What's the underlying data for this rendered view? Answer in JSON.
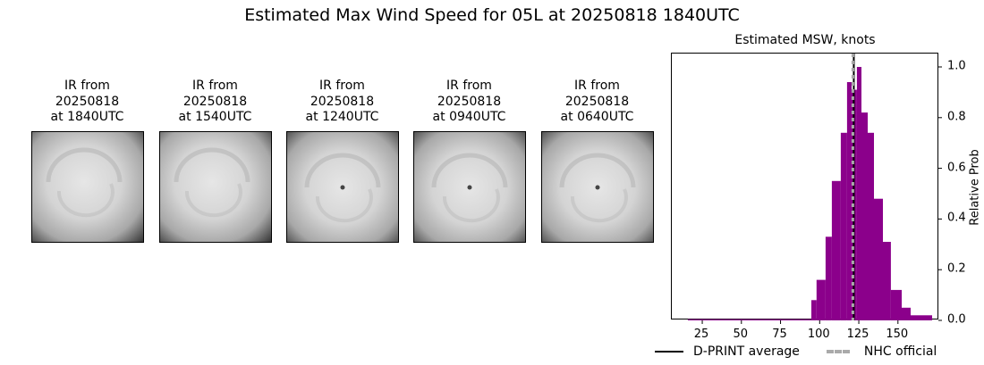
{
  "title": "Estimated Max Wind Speed for 05L at 20250818 1840UTC",
  "ir_panels": [
    {
      "caption": "IR from\n20250818\nat 1840UTC",
      "eye": false
    },
    {
      "caption": "IR from\n20250818\nat 1540UTC",
      "eye": false
    },
    {
      "caption": "IR from\n20250818\nat 1240UTC",
      "eye": true
    },
    {
      "caption": "IR from\n20250818\nat 0940UTC",
      "eye": true
    },
    {
      "caption": "IR from\n20250818\nat 0640UTC",
      "eye": true
    }
  ],
  "legend": {
    "dprint_label": "D-PRINT average",
    "nhc_label": "NHC official"
  },
  "colors": {
    "bar": "#8b008b",
    "dprint_line": "#000000",
    "nhc_line": "#aaaaaa"
  },
  "chart_data": {
    "type": "bar",
    "title": "Estimated MSW, knots",
    "xlabel": "",
    "ylabel": "Relative Prob",
    "xlim": [
      6,
      176.5
    ],
    "ylim": [
      0.0,
      1.05
    ],
    "xticks": [
      25,
      50,
      75,
      100,
      125,
      150
    ],
    "yticks": [
      0.0,
      0.2,
      0.4,
      0.6,
      0.8,
      1.0
    ],
    "ytick_labels": [
      "0.0",
      "0.2",
      "0.4",
      "0.6",
      "0.8",
      "1.0"
    ],
    "y_axis_side": "right",
    "grid": false,
    "bins": [
      {
        "x0": 15.8,
        "x1": 94.7,
        "value": 0.005
      },
      {
        "x0": 94.7,
        "x1": 98.0,
        "value": 0.08
      },
      {
        "x0": 98.0,
        "x1": 103.8,
        "value": 0.16
      },
      {
        "x0": 103.8,
        "x1": 107.8,
        "value": 0.33
      },
      {
        "x0": 107.8,
        "x1": 113.5,
        "value": 0.55
      },
      {
        "x0": 113.5,
        "x1": 117.5,
        "value": 0.74
      },
      {
        "x0": 117.5,
        "x1": 120.4,
        "value": 0.94
      },
      {
        "x0": 120.4,
        "x1": 123.8,
        "value": 0.91
      },
      {
        "x0": 123.8,
        "x1": 126.7,
        "value": 1.0
      },
      {
        "x0": 126.7,
        "x1": 130.7,
        "value": 0.82
      },
      {
        "x0": 130.7,
        "x1": 134.7,
        "value": 0.74
      },
      {
        "x0": 134.7,
        "x1": 140.4,
        "value": 0.48
      },
      {
        "x0": 140.4,
        "x1": 145.5,
        "value": 0.31
      },
      {
        "x0": 145.5,
        "x1": 152.4,
        "value": 0.12
      },
      {
        "x0": 152.4,
        "x1": 158.1,
        "value": 0.05
      },
      {
        "x0": 158.1,
        "x1": 171.8,
        "value": 0.02
      }
    ],
    "vlines": [
      {
        "name": "D-PRINT average",
        "x": 121.8,
        "style": "solid",
        "color": "#000000"
      },
      {
        "name": "NHC official",
        "x": 121.2,
        "style": "dashed",
        "color": "#aaaaaa"
      }
    ],
    "legend_position": "bottom"
  }
}
